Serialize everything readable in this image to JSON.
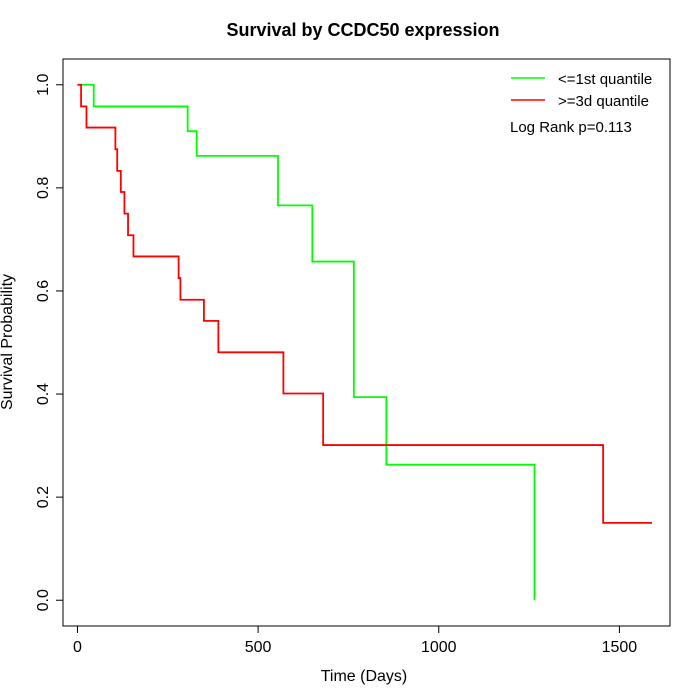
{
  "chart_data": {
    "type": "line",
    "title": "Survival by CCDC50 expression",
    "xlabel": "Time (Days)",
    "ylabel": "Survival Probability",
    "xlim": [
      -40,
      1640
    ],
    "ylim": [
      -0.05,
      1.05
    ],
    "x_ticks": [
      0,
      500,
      1000,
      1500
    ],
    "y_ticks": [
      0.0,
      0.2,
      0.4,
      0.6,
      0.8,
      1.0
    ],
    "x_tick_labels": [
      "0",
      "500",
      "1000",
      "1500"
    ],
    "y_tick_labels": [
      "0.0",
      "0.2",
      "0.4",
      "0.6",
      "0.8",
      "1.0"
    ],
    "grid": false,
    "legend_position": "top-right",
    "annotation": "Log Rank p=0.113",
    "series": [
      {
        "name": "<=1st quantile",
        "color": "#00ff00",
        "step": "post",
        "x": [
          0,
          45,
          305,
          330,
          555,
          650,
          765,
          855,
          1265,
          1265
        ],
        "y": [
          1.0,
          0.958,
          0.91,
          0.862,
          0.766,
          0.657,
          0.394,
          0.263,
          0.263,
          0.0
        ]
      },
      {
        "name": ">=3d quantile",
        "color": "#ff0000",
        "step": "post",
        "x": [
          0,
          10,
          25,
          105,
          110,
          120,
          130,
          140,
          155,
          175,
          280,
          285,
          350,
          390,
          570,
          680,
          1455,
          1590
        ],
        "y": [
          1.0,
          0.958,
          0.917,
          0.875,
          0.833,
          0.792,
          0.75,
          0.708,
          0.667,
          0.667,
          0.625,
          0.583,
          0.542,
          0.481,
          0.401,
          0.301,
          0.15,
          0.15
        ]
      }
    ]
  }
}
